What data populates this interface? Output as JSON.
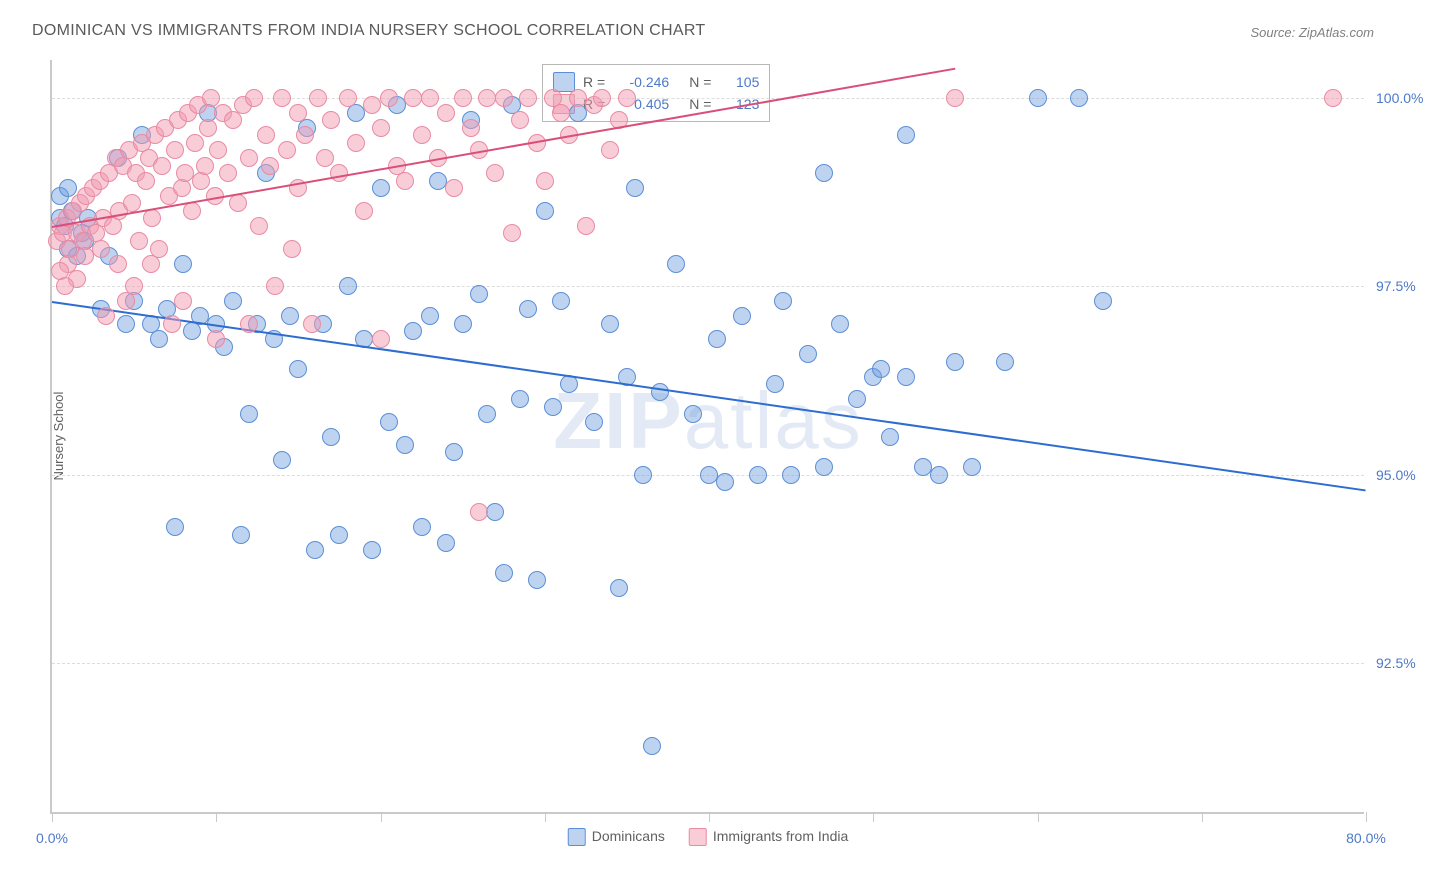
{
  "title": "DOMINICAN VS IMMIGRANTS FROM INDIA NURSERY SCHOOL CORRELATION CHART",
  "source": "Source: ZipAtlas.com",
  "watermark": "ZIPatlas",
  "chart": {
    "type": "scatter",
    "y_axis_title": "Nursery School",
    "xlim": [
      0,
      80
    ],
    "ylim": [
      90.5,
      100.5
    ],
    "y_ticks": [
      92.5,
      95.0,
      97.5,
      100.0
    ],
    "y_tick_labels": [
      "92.5%",
      "95.0%",
      "97.5%",
      "100.0%"
    ],
    "x_ticks": [
      0,
      10,
      20,
      30,
      40,
      50,
      60,
      70,
      80
    ],
    "x_tick_labels_shown": {
      "0": "0.0%",
      "80": "80.0%"
    },
    "background_color": "#ffffff",
    "grid_color": "#dcdcdc",
    "axis_color": "#c9c9c9",
    "tick_label_color": "#4d79c7",
    "tick_label_fontsize": 14,
    "title_fontsize": 16,
    "title_color": "#5a5a5a",
    "marker_size": 18,
    "marker_opacity": 0.55,
    "line_width": 2,
    "series": [
      {
        "name": "Dominicans",
        "color_fill": "rgba(109,158,222,0.45)",
        "color_stroke": "#5d8fd6",
        "trend_color": "#2d6cd0",
        "R": -0.246,
        "N": 105,
        "trendline": {
          "x1": 0,
          "y1": 97.3,
          "x2": 80,
          "y2": 94.8
        },
        "points": [
          [
            0.5,
            98.4
          ],
          [
            0.8,
            98.3
          ],
          [
            1.0,
            98.0
          ],
          [
            1.2,
            98.5
          ],
          [
            1.5,
            97.9
          ],
          [
            1.8,
            98.2
          ],
          [
            2.0,
            98.1
          ],
          [
            2.2,
            98.4
          ],
          [
            0.5,
            98.7
          ],
          [
            1.0,
            98.8
          ],
          [
            3.0,
            97.2
          ],
          [
            3.5,
            97.9
          ],
          [
            4.0,
            99.2
          ],
          [
            4.5,
            97.0
          ],
          [
            5.0,
            97.3
          ],
          [
            5.5,
            99.5
          ],
          [
            6.0,
            97.0
          ],
          [
            6.5,
            96.8
          ],
          [
            7.0,
            97.2
          ],
          [
            7.5,
            94.3
          ],
          [
            8.0,
            97.8
          ],
          [
            8.5,
            96.9
          ],
          [
            9.0,
            97.1
          ],
          [
            9.5,
            99.8
          ],
          [
            10.0,
            97.0
          ],
          [
            10.5,
            96.7
          ],
          [
            11.0,
            97.3
          ],
          [
            11.5,
            94.2
          ],
          [
            12.0,
            95.8
          ],
          [
            12.5,
            97.0
          ],
          [
            13.0,
            99.0
          ],
          [
            13.5,
            96.8
          ],
          [
            14.0,
            95.2
          ],
          [
            14.5,
            97.1
          ],
          [
            15.0,
            96.4
          ],
          [
            15.5,
            99.6
          ],
          [
            16.0,
            94.0
          ],
          [
            16.5,
            97.0
          ],
          [
            17.0,
            95.5
          ],
          [
            17.5,
            94.2
          ],
          [
            18.0,
            97.5
          ],
          [
            18.5,
            99.8
          ],
          [
            19.0,
            96.8
          ],
          [
            19.5,
            94.0
          ],
          [
            20.0,
            98.8
          ],
          [
            20.5,
            95.7
          ],
          [
            21.0,
            99.9
          ],
          [
            21.5,
            95.4
          ],
          [
            22.0,
            96.9
          ],
          [
            22.5,
            94.3
          ],
          [
            23.0,
            97.1
          ],
          [
            23.5,
            98.9
          ],
          [
            24.0,
            94.1
          ],
          [
            24.5,
            95.3
          ],
          [
            25.0,
            97.0
          ],
          [
            25.5,
            99.7
          ],
          [
            26.0,
            97.4
          ],
          [
            26.5,
            95.8
          ],
          [
            27.0,
            94.5
          ],
          [
            27.5,
            93.7
          ],
          [
            28.0,
            99.9
          ],
          [
            28.5,
            96.0
          ],
          [
            29.0,
            97.2
          ],
          [
            29.5,
            93.6
          ],
          [
            30.0,
            98.5
          ],
          [
            30.5,
            95.9
          ],
          [
            31.0,
            97.3
          ],
          [
            31.5,
            96.2
          ],
          [
            32.0,
            99.8
          ],
          [
            33.0,
            95.7
          ],
          [
            34.0,
            97.0
          ],
          [
            34.5,
            93.5
          ],
          [
            35.0,
            96.3
          ],
          [
            35.5,
            98.8
          ],
          [
            36.0,
            95.0
          ],
          [
            36.5,
            91.4
          ],
          [
            37.0,
            96.1
          ],
          [
            38.0,
            97.8
          ],
          [
            39.0,
            95.8
          ],
          [
            40.0,
            95.0
          ],
          [
            40.5,
            96.8
          ],
          [
            41.0,
            94.9
          ],
          [
            42.0,
            97.1
          ],
          [
            43.0,
            95.0
          ],
          [
            44.0,
            96.2
          ],
          [
            44.5,
            97.3
          ],
          [
            45.0,
            95.0
          ],
          [
            46.0,
            96.6
          ],
          [
            47.0,
            95.1
          ],
          [
            48.0,
            97.0
          ],
          [
            49.0,
            96.0
          ],
          [
            50.0,
            96.3
          ],
          [
            50.5,
            96.4
          ],
          [
            51.0,
            95.5
          ],
          [
            52.0,
            96.3
          ],
          [
            53.0,
            95.1
          ],
          [
            54.0,
            95.0
          ],
          [
            55.0,
            96.5
          ],
          [
            56.0,
            95.1
          ],
          [
            58.0,
            96.5
          ],
          [
            60.0,
            100.0
          ],
          [
            62.5,
            100.0
          ],
          [
            64.0,
            97.3
          ],
          [
            52.0,
            99.5
          ],
          [
            47.0,
            99.0
          ]
        ]
      },
      {
        "name": "Immigrants from India",
        "color_fill": "rgba(241,156,178,0.5)",
        "color_stroke": "#e88ba3",
        "trend_color": "#d94f79",
        "R": 0.405,
        "N": 123,
        "trendline": {
          "x1": 0,
          "y1": 98.3,
          "x2": 55,
          "y2": 100.4
        },
        "points": [
          [
            0.3,
            98.1
          ],
          [
            0.5,
            98.3
          ],
          [
            0.7,
            98.2
          ],
          [
            0.9,
            98.4
          ],
          [
            1.1,
            98.0
          ],
          [
            1.3,
            98.5
          ],
          [
            1.5,
            98.2
          ],
          [
            1.7,
            98.6
          ],
          [
            1.9,
            98.1
          ],
          [
            2.1,
            98.7
          ],
          [
            2.3,
            98.3
          ],
          [
            2.5,
            98.8
          ],
          [
            2.7,
            98.2
          ],
          [
            2.9,
            98.9
          ],
          [
            3.1,
            98.4
          ],
          [
            3.3,
            97.1
          ],
          [
            3.5,
            99.0
          ],
          [
            3.7,
            98.3
          ],
          [
            3.9,
            99.2
          ],
          [
            4.1,
            98.5
          ],
          [
            4.3,
            99.1
          ],
          [
            4.5,
            97.3
          ],
          [
            4.7,
            99.3
          ],
          [
            4.9,
            98.6
          ],
          [
            5.1,
            99.0
          ],
          [
            5.3,
            98.1
          ],
          [
            5.5,
            99.4
          ],
          [
            5.7,
            98.9
          ],
          [
            5.9,
            99.2
          ],
          [
            6.1,
            98.4
          ],
          [
            6.3,
            99.5
          ],
          [
            6.5,
            98.0
          ],
          [
            6.7,
            99.1
          ],
          [
            6.9,
            99.6
          ],
          [
            7.1,
            98.7
          ],
          [
            7.3,
            97.0
          ],
          [
            7.5,
            99.3
          ],
          [
            7.7,
            99.7
          ],
          [
            7.9,
            98.8
          ],
          [
            8.1,
            99.0
          ],
          [
            8.3,
            99.8
          ],
          [
            8.5,
            98.5
          ],
          [
            8.7,
            99.4
          ],
          [
            8.9,
            99.9
          ],
          [
            9.1,
            98.9
          ],
          [
            9.3,
            99.1
          ],
          [
            9.5,
            99.6
          ],
          [
            9.7,
            100.0
          ],
          [
            9.9,
            98.7
          ],
          [
            10.1,
            99.3
          ],
          [
            10.4,
            99.8
          ],
          [
            10.7,
            99.0
          ],
          [
            11.0,
            99.7
          ],
          [
            11.3,
            98.6
          ],
          [
            11.6,
            99.9
          ],
          [
            12.0,
            99.2
          ],
          [
            12.3,
            100.0
          ],
          [
            12.6,
            98.3
          ],
          [
            13.0,
            99.5
          ],
          [
            13.3,
            99.1
          ],
          [
            13.6,
            97.5
          ],
          [
            14.0,
            100.0
          ],
          [
            14.3,
            99.3
          ],
          [
            14.6,
            98.0
          ],
          [
            15.0,
            99.8
          ],
          [
            15.4,
            99.5
          ],
          [
            15.8,
            97.0
          ],
          [
            16.2,
            100.0
          ],
          [
            16.6,
            99.2
          ],
          [
            17.0,
            99.7
          ],
          [
            17.5,
            99.0
          ],
          [
            18.0,
            100.0
          ],
          [
            18.5,
            99.4
          ],
          [
            19.0,
            98.5
          ],
          [
            19.5,
            99.9
          ],
          [
            20.0,
            99.6
          ],
          [
            20.5,
            100.0
          ],
          [
            21.0,
            99.1
          ],
          [
            21.5,
            98.9
          ],
          [
            22.0,
            100.0
          ],
          [
            22.5,
            99.5
          ],
          [
            23.0,
            100.0
          ],
          [
            23.5,
            99.2
          ],
          [
            24.0,
            99.8
          ],
          [
            24.5,
            98.8
          ],
          [
            25.0,
            100.0
          ],
          [
            25.5,
            99.6
          ],
          [
            26.0,
            99.3
          ],
          [
            26.5,
            100.0
          ],
          [
            27.0,
            99.0
          ],
          [
            27.5,
            100.0
          ],
          [
            28.0,
            98.2
          ],
          [
            28.5,
            99.7
          ],
          [
            29.0,
            100.0
          ],
          [
            29.5,
            99.4
          ],
          [
            30.0,
            98.9
          ],
          [
            30.5,
            100.0
          ],
          [
            31.0,
            99.8
          ],
          [
            31.5,
            99.5
          ],
          [
            32.0,
            100.0
          ],
          [
            32.5,
            98.3
          ],
          [
            33.0,
            99.9
          ],
          [
            33.5,
            100.0
          ],
          [
            34.0,
            99.3
          ],
          [
            34.5,
            99.7
          ],
          [
            35.0,
            100.0
          ],
          [
            26.0,
            94.5
          ],
          [
            20.0,
            96.8
          ],
          [
            15.0,
            98.8
          ],
          [
            12.0,
            97.0
          ],
          [
            10.0,
            96.8
          ],
          [
            8.0,
            97.3
          ],
          [
            6.0,
            97.8
          ],
          [
            5.0,
            97.5
          ],
          [
            4.0,
            97.8
          ],
          [
            3.0,
            98.0
          ],
          [
            2.0,
            97.9
          ],
          [
            1.5,
            97.6
          ],
          [
            1.0,
            97.8
          ],
          [
            0.8,
            97.5
          ],
          [
            0.5,
            97.7
          ],
          [
            78.0,
            100.0
          ],
          [
            55.0,
            100.0
          ]
        ]
      }
    ]
  },
  "legend": {
    "top_box": {
      "R_label": "R =",
      "N_label": "N ="
    },
    "bottom": [
      "Dominicans",
      "Immigrants from India"
    ]
  }
}
